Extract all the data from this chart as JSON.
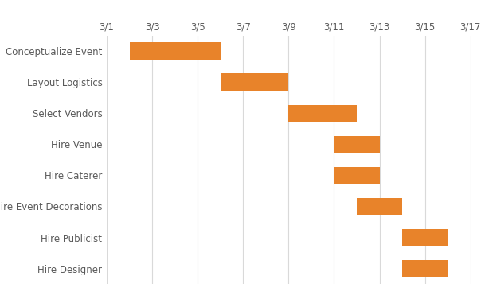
{
  "tasks": [
    "Conceptualize Event",
    "Layout Logistics",
    "Select Vendors",
    "Hire Venue",
    "Hire Caterer",
    "Hire Event Decorations",
    "Hire Publicist",
    "Hire Designer"
  ],
  "starts": [
    2,
    6,
    9,
    11,
    11,
    12,
    14,
    14
  ],
  "durations": [
    4,
    3,
    3,
    2,
    2,
    2,
    2,
    2
  ],
  "bar_color": "#E8832A",
  "xlim": [
    1,
    17
  ],
  "xticks": [
    1,
    3,
    5,
    7,
    9,
    11,
    13,
    15,
    17
  ],
  "xtick_labels": [
    "3/1",
    "3/3",
    "3/5",
    "3/7",
    "3/9",
    "3/11",
    "3/13",
    "3/15",
    "3/17"
  ],
  "grid_color": "#d9d9d9",
  "background_color": "#ffffff",
  "tick_label_color": "#595959",
  "bar_height": 0.55,
  "figsize": [
    6.09,
    3.72
  ],
  "dpi": 100,
  "label_fontsize": 8.5,
  "tick_fontsize": 8.5
}
